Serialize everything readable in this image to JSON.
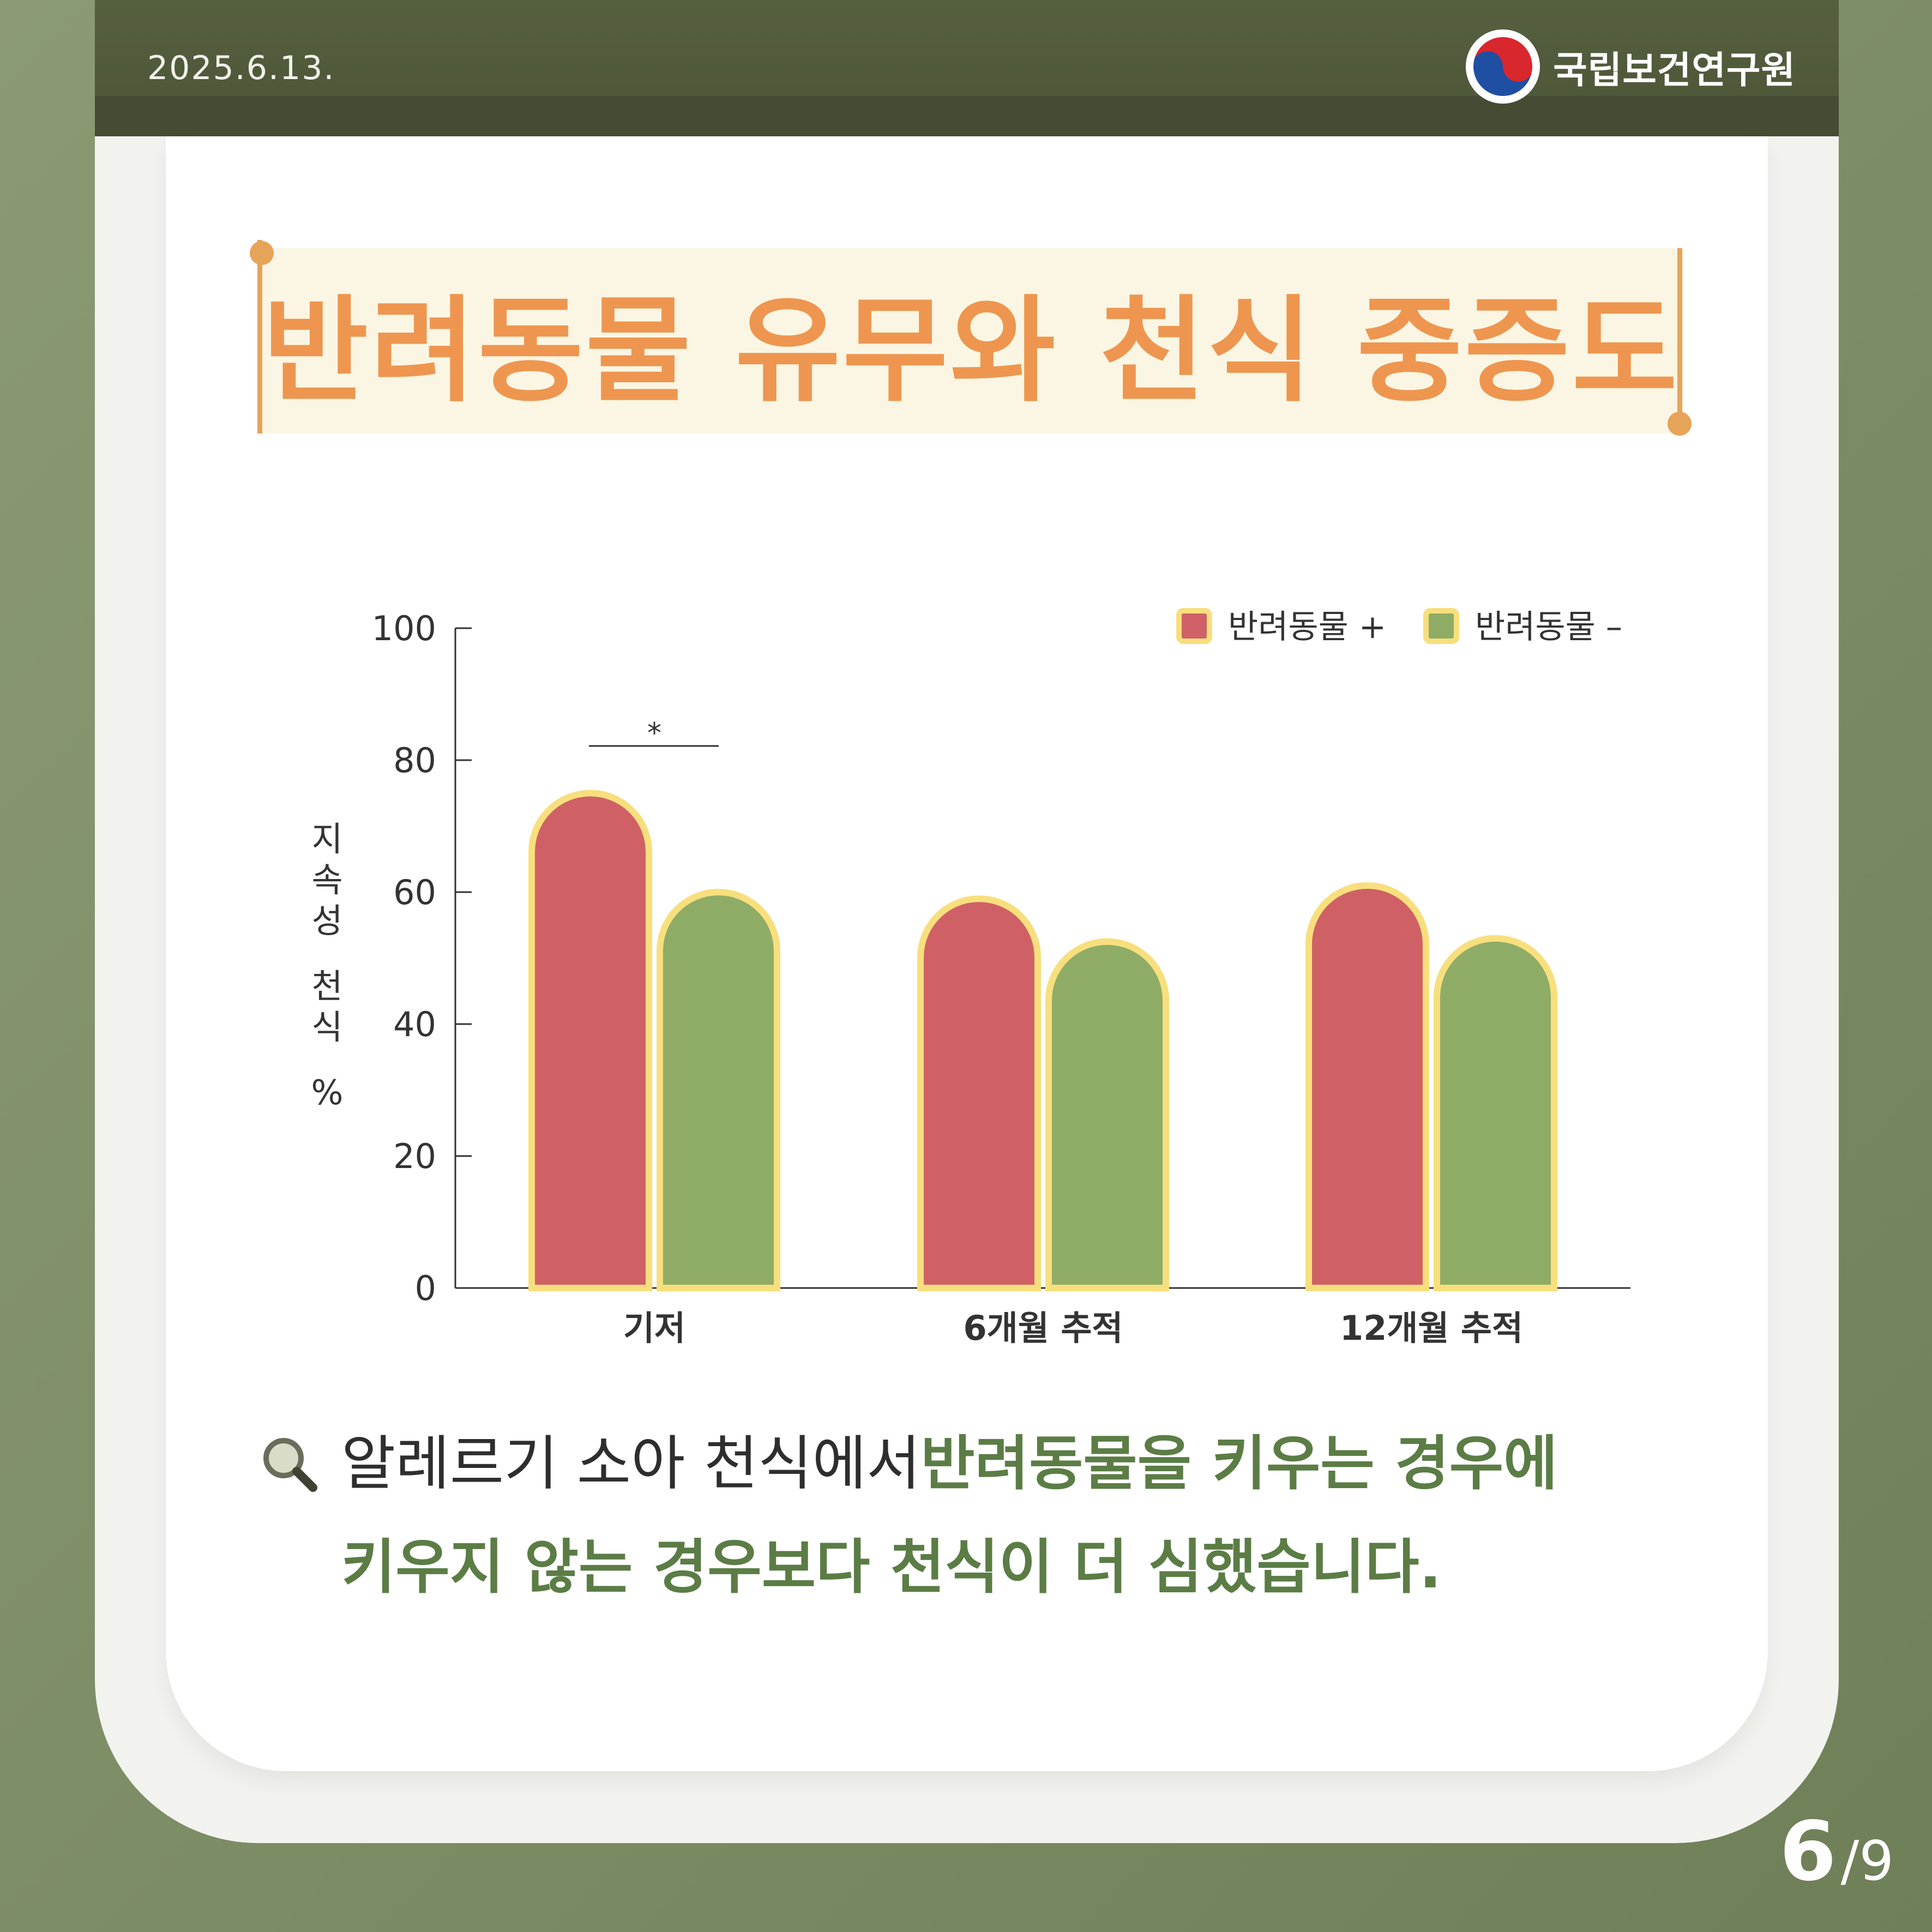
{
  "header": {
    "date": "2025.6.13.",
    "org_name": "국립보건연구원"
  },
  "title": "반려동물 유무와 천식 중증도",
  "chart_data": {
    "type": "bar",
    "categories": [
      "기저",
      "6개월 추적",
      "12개월 추적"
    ],
    "series": [
      {
        "name": "반려동물 +",
        "color": "#cf6166",
        "values": [
          75,
          59,
          61
        ]
      },
      {
        "name": "반려동물 –",
        "color": "#8fac66",
        "values": [
          60,
          52.5,
          53
        ]
      }
    ],
    "ylabel": "지속성 천식 %",
    "ylim": [
      0,
      100
    ],
    "yticks": [
      0,
      20,
      40,
      60,
      80,
      100
    ],
    "legend_position": "top-right",
    "bar_outline_color": "#f8df7d",
    "annotations": [
      {
        "category": "기저",
        "text": "*"
      }
    ]
  },
  "caption": {
    "normal": "알레르기 소아 천식에서 ",
    "highlight_a": "반려동물을 키우는 경우에",
    "highlight_b": "키우지 않는 경우보다 천식이 더 심했습니다."
  },
  "pagination": {
    "current": "6",
    "total": "/9"
  }
}
